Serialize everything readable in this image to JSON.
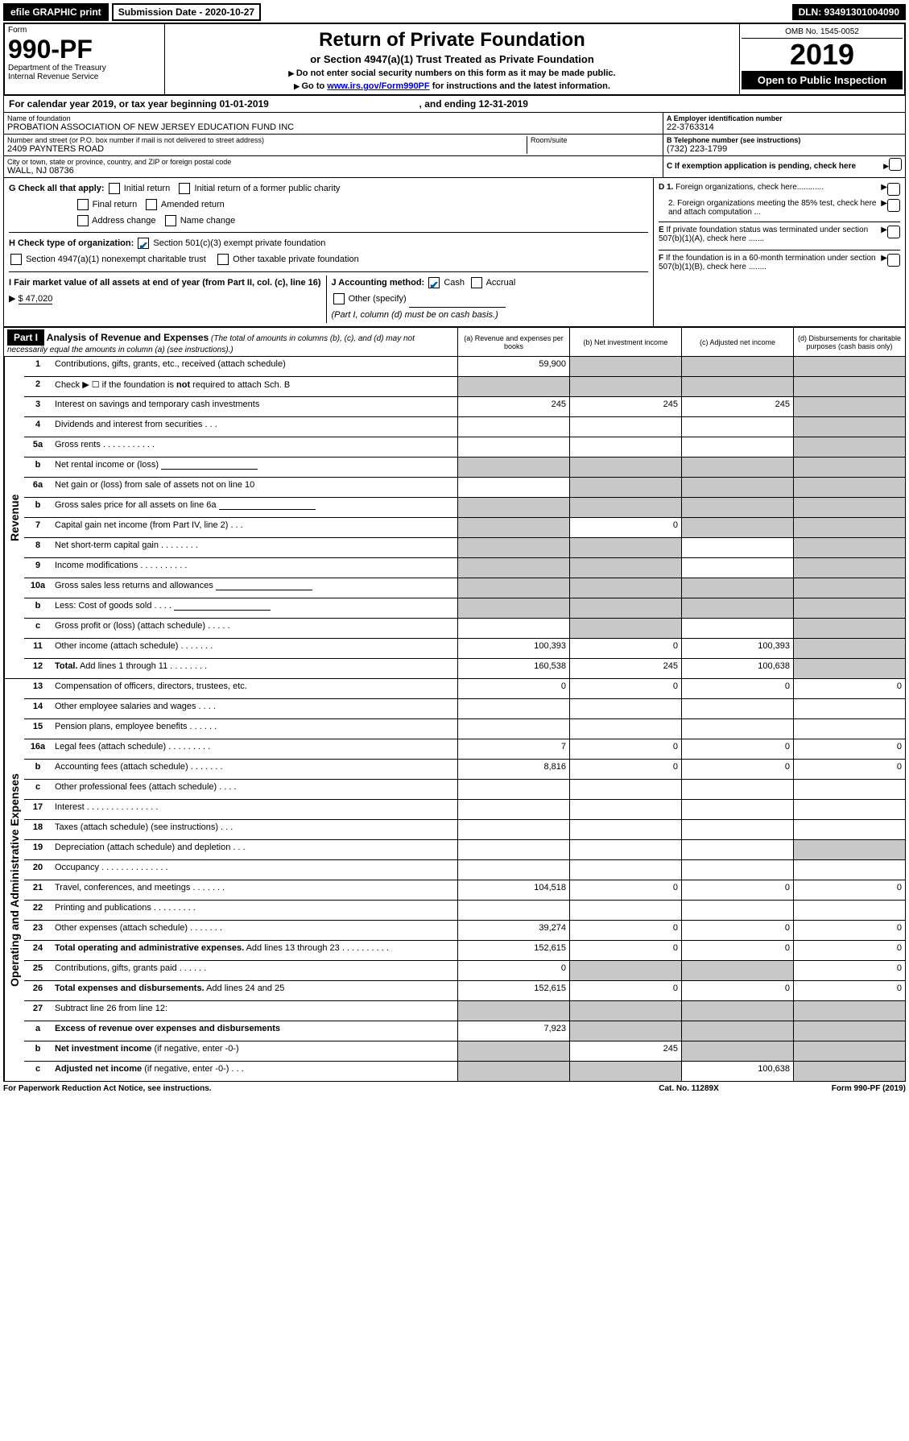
{
  "topBar": {
    "efile": "efile GRAPHIC print",
    "subDate": "Submission Date - 2020-10-27",
    "dln": "DLN: 93491301004090"
  },
  "header": {
    "formWord": "Form",
    "formNum": "990-PF",
    "dept": "Department of the Treasury",
    "irs": "Internal Revenue Service",
    "title": "Return of Private Foundation",
    "subtitle": "or Section 4947(a)(1) Trust Treated as Private Foundation",
    "instr1": "Do not enter social security numbers on this form as it may be made public.",
    "instr2": "Go to ",
    "instrLink": "www.irs.gov/Form990PF",
    "instr3": " for instructions and the latest information.",
    "omb": "OMB No. 1545-0052",
    "year": "2019",
    "openPublic": "Open to Public Inspection"
  },
  "calYear": {
    "text1": "For calendar year 2019, or tax year beginning ",
    "begin": "01-01-2019",
    "text2": " , and ending ",
    "end": "12-31-2019"
  },
  "entity": {
    "nameLbl": "Name of foundation",
    "name": "PROBATION ASSOCIATION OF NEW JERSEY EDUCATION FUND INC",
    "addrLbl": "Number and street (or P.O. box number if mail is not delivered to street address)",
    "addr": "2409 PAYNTERS ROAD",
    "roomLbl": "Room/suite",
    "cityLbl": "City or town, state or province, country, and ZIP or foreign postal code",
    "city": "WALL, NJ  08736",
    "einLbl": "A Employer identification number",
    "ein": "22-3763314",
    "telLbl": "B  Telephone number (see instructions)",
    "tel": "(732) 223-1799",
    "cLbl": "C  If exemption application is pending, check here"
  },
  "checks": {
    "gLabel": "G Check all that apply:",
    "g": [
      "Initial return",
      "Initial return of a former public charity",
      "Final return",
      "Amended return",
      "Address change",
      "Name change"
    ],
    "hLabel": "H Check type of organization:",
    "h1": "Section 501(c)(3) exempt private foundation",
    "h2": "Section 4947(a)(1) nonexempt charitable trust",
    "h3": "Other taxable private foundation",
    "iLabel": "I Fair market value of all assets at end of year (from Part II, col. (c), line 16)",
    "iVal": "$  47,020",
    "jLabel": "J Accounting method:",
    "j": [
      "Cash",
      "Accrual"
    ],
    "jOther": "Other (specify)",
    "jNote": "(Part I, column (d) must be on cash basis.)",
    "d1": "D 1. Foreign organizations, check here",
    "d2": "2. Foreign organizations meeting the 85% test, check here and attach computation ...",
    "e": "E  If private foundation status was terminated under section 507(b)(1)(A), check here",
    "f": "F  If the foundation is in a 60-month termination under section 507(b)(1)(B), check here"
  },
  "part1": {
    "label": "Part I",
    "title": "Analysis of Revenue and Expenses",
    "titleNote": " (The total of amounts in columns (b), (c), and (d) may not necessarily equal the amounts in column (a) (see instructions).)",
    "colA": "(a)  Revenue and expenses per books",
    "colB": "(b)  Net investment income",
    "colC": "(c)  Adjusted net income",
    "colD": "(d)  Disbursements for charitable purposes (cash basis only)"
  },
  "sideLabels": {
    "rev": "Revenue",
    "exp": "Operating and Administrative Expenses"
  },
  "revRows": [
    {
      "ln": "1",
      "desc": "Contributions, gifts, grants, etc., received (attach schedule)",
      "a": "59,900",
      "b": "",
      "c": "",
      "d": "",
      "bg": true,
      "cg": true,
      "dg": true
    },
    {
      "ln": "2",
      "desc": "Check ▶ ☐ if the foundation is <b>not</b> required to attach Sch. B",
      "a": "",
      "b": "",
      "c": "",
      "d": "",
      "ag": true,
      "bg": true,
      "cg": true,
      "dg": true
    },
    {
      "ln": "3",
      "desc": "Interest on savings and temporary cash investments",
      "a": "245",
      "b": "245",
      "c": "245",
      "d": "",
      "dg": true
    },
    {
      "ln": "4",
      "desc": "Dividends and interest from securities   .   .   .",
      "a": "",
      "b": "",
      "c": "",
      "d": "",
      "dg": true
    },
    {
      "ln": "5a",
      "desc": "Gross rents    .   .   .   .   .   .   .   .   .   .   .",
      "a": "",
      "b": "",
      "c": "",
      "d": "",
      "dg": true
    },
    {
      "ln": "b",
      "desc": "Net rental income or (loss)  ",
      "a": "",
      "b": "",
      "c": "",
      "d": "",
      "ag": true,
      "bg": true,
      "cg": true,
      "dg": true,
      "hasLine": true
    },
    {
      "ln": "6a",
      "desc": "Net gain or (loss) from sale of assets not on line 10",
      "a": "",
      "b": "",
      "c": "",
      "d": "",
      "bg": true,
      "cg": true,
      "dg": true
    },
    {
      "ln": "b",
      "desc": "Gross sales price for all assets on line 6a ",
      "a": "",
      "b": "",
      "c": "",
      "d": "",
      "ag": true,
      "bg": true,
      "cg": true,
      "dg": true,
      "hasLine": true
    },
    {
      "ln": "7",
      "desc": "Capital gain net income (from Part IV, line 2)    .   .   .",
      "a": "",
      "b": "0",
      "c": "",
      "d": "",
      "ag": true,
      "cg": true,
      "dg": true
    },
    {
      "ln": "8",
      "desc": "Net short-term capital gain   .   .   .   .   .   .   .   .",
      "a": "",
      "b": "",
      "c": "",
      "d": "",
      "ag": true,
      "bg": true,
      "dg": true
    },
    {
      "ln": "9",
      "desc": "Income modifications   .   .   .   .   .   .   .   .   .   .",
      "a": "",
      "b": "",
      "c": "",
      "d": "",
      "ag": true,
      "bg": true,
      "dg": true
    },
    {
      "ln": "10a",
      "desc": "Gross sales less returns and allowances ",
      "a": "",
      "b": "",
      "c": "",
      "d": "",
      "ag": true,
      "bg": true,
      "cg": true,
      "dg": true,
      "hasLine": true
    },
    {
      "ln": "b",
      "desc": "Less: Cost of goods sold    .   .   .   .  ",
      "a": "",
      "b": "",
      "c": "",
      "d": "",
      "ag": true,
      "bg": true,
      "cg": true,
      "dg": true,
      "hasLine": true
    },
    {
      "ln": "c",
      "desc": "Gross profit or (loss) (attach schedule)   .   .   .   .   .",
      "a": "",
      "b": "",
      "c": "",
      "d": "",
      "bg": true,
      "dg": true
    },
    {
      "ln": "11",
      "desc": "Other income (attach schedule)   .   .   .   .   .   .   .",
      "a": "100,393",
      "b": "0",
      "c": "100,393",
      "d": "",
      "dg": true
    },
    {
      "ln": "12",
      "desc": "<b>Total.</b> Add lines 1 through 11   .   .   .   .   .   .   .   .",
      "a": "160,538",
      "b": "245",
      "c": "100,638",
      "d": "",
      "dg": true
    }
  ],
  "expRows": [
    {
      "ln": "13",
      "desc": "Compensation of officers, directors, trustees, etc.",
      "a": "0",
      "b": "0",
      "c": "0",
      "d": "0"
    },
    {
      "ln": "14",
      "desc": "Other employee salaries and wages    .   .   .   .",
      "a": "",
      "b": "",
      "c": "",
      "d": ""
    },
    {
      "ln": "15",
      "desc": "Pension plans, employee benefits   .   .   .   .   .   .",
      "a": "",
      "b": "",
      "c": "",
      "d": ""
    },
    {
      "ln": "16a",
      "desc": "Legal fees (attach schedule)   .   .   .   .   .   .   .   .   .",
      "a": "7",
      "b": "0",
      "c": "0",
      "d": "0"
    },
    {
      "ln": "b",
      "desc": "Accounting fees (attach schedule)   .   .   .   .   .   .   .",
      "a": "8,816",
      "b": "0",
      "c": "0",
      "d": "0"
    },
    {
      "ln": "c",
      "desc": "Other professional fees (attach schedule)    .   .   .   .",
      "a": "",
      "b": "",
      "c": "",
      "d": ""
    },
    {
      "ln": "17",
      "desc": "Interest  .   .   .   .   .   .   .   .   .   .   .   .   .   .   .",
      "a": "",
      "b": "",
      "c": "",
      "d": ""
    },
    {
      "ln": "18",
      "desc": "Taxes (attach schedule) (see instructions)    .   .   .",
      "a": "",
      "b": "",
      "c": "",
      "d": ""
    },
    {
      "ln": "19",
      "desc": "Depreciation (attach schedule) and depletion    .   .   .",
      "a": "",
      "b": "",
      "c": "",
      "d": "",
      "dg": true
    },
    {
      "ln": "20",
      "desc": "Occupancy   .   .   .   .   .   .   .   .   .   .   .   .   .   .",
      "a": "",
      "b": "",
      "c": "",
      "d": ""
    },
    {
      "ln": "21",
      "desc": "Travel, conferences, and meetings   .   .   .   .   .   .   .",
      "a": "104,518",
      "b": "0",
      "c": "0",
      "d": "0"
    },
    {
      "ln": "22",
      "desc": "Printing and publications   .   .   .   .   .   .   .   .   .",
      "a": "",
      "b": "",
      "c": "",
      "d": ""
    },
    {
      "ln": "23",
      "desc": "Other expenses (attach schedule)   .   .   .   .   .   .   .",
      "a": "39,274",
      "b": "0",
      "c": "0",
      "d": "0"
    },
    {
      "ln": "24",
      "desc": "<b>Total operating and administrative expenses.</b> Add lines 13 through 23   .   .   .   .   .   .   .   .   .   .",
      "a": "152,615",
      "b": "0",
      "c": "0",
      "d": "0"
    },
    {
      "ln": "25",
      "desc": "Contributions, gifts, grants paid    .   .   .   .   .   .",
      "a": "0",
      "b": "",
      "c": "",
      "d": "0",
      "bg": true,
      "cg": true
    },
    {
      "ln": "26",
      "desc": "<b>Total expenses and disbursements.</b> Add lines 24 and 25",
      "a": "152,615",
      "b": "0",
      "c": "0",
      "d": "0"
    },
    {
      "ln": "27",
      "desc": "Subtract line 26 from line 12:",
      "a": "",
      "b": "",
      "c": "",
      "d": "",
      "ag": true,
      "bg": true,
      "cg": true,
      "dg": true
    },
    {
      "ln": "a",
      "desc": "<b>Excess of revenue over expenses and disbursements</b>",
      "a": "7,923",
      "b": "",
      "c": "",
      "d": "",
      "bg": true,
      "cg": true,
      "dg": true
    },
    {
      "ln": "b",
      "desc": "<b>Net investment income</b> (if negative, enter -0-)",
      "a": "",
      "b": "245",
      "c": "",
      "d": "",
      "ag": true,
      "cg": true,
      "dg": true
    },
    {
      "ln": "c",
      "desc": "<b>Adjusted net income</b> (if negative, enter -0-)    .   .   .",
      "a": "",
      "b": "",
      "c": "100,638",
      "d": "",
      "ag": true,
      "bg": true,
      "dg": true
    }
  ],
  "footer": {
    "left": "For Paperwork Reduction Act Notice, see instructions.",
    "mid": "Cat. No. 11289X",
    "right": "Form 990-PF (2019)"
  }
}
